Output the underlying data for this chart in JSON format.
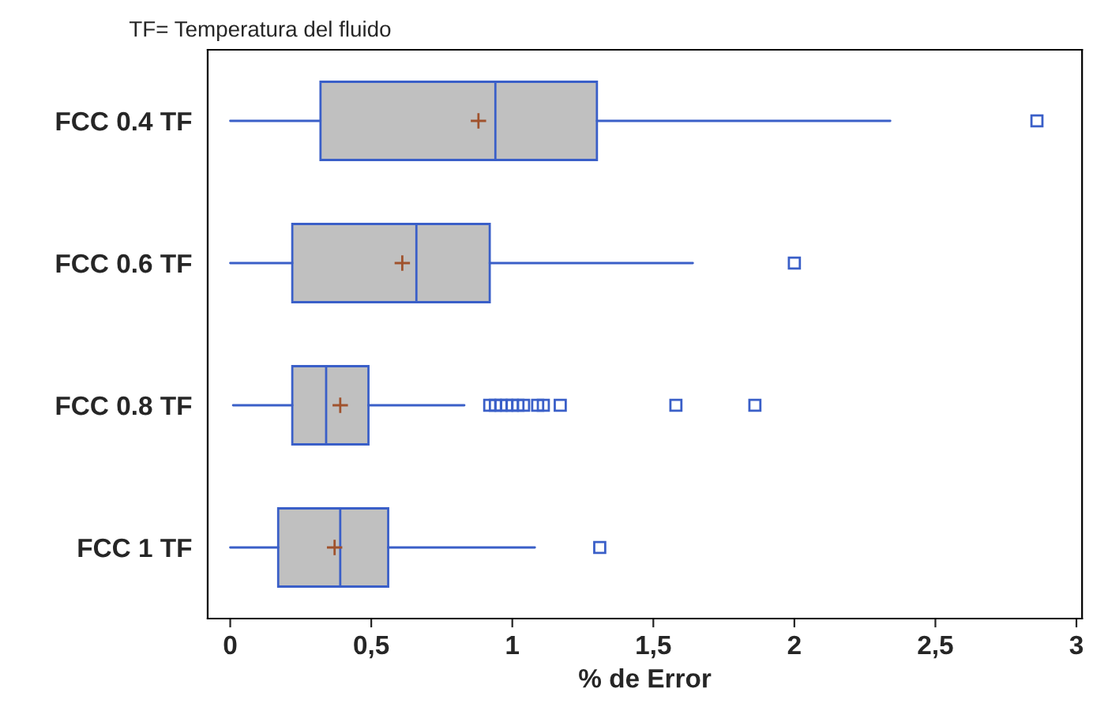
{
  "chart_data": {
    "type": "box",
    "title": "TF= Temperatura del fluido",
    "xlabel": "% de Error",
    "orientation": "horizontal",
    "categories": [
      "FCC 0.4 TF",
      "FCC 0.6 TF",
      "FCC 0.8 TF",
      "FCC 1 TF"
    ],
    "boxes": [
      {
        "low": 0,
        "q1": 0.32,
        "median": 0.94,
        "q3": 1.3,
        "high": 2.34,
        "mean": 0.88,
        "outliers": [
          2.86
        ]
      },
      {
        "low": 0,
        "q1": 0.22,
        "median": 0.66,
        "q3": 0.92,
        "high": 1.64,
        "mean": 0.61,
        "outliers": [
          2.0
        ]
      },
      {
        "low": 0.01,
        "q1": 0.22,
        "median": 0.34,
        "q3": 0.49,
        "high": 0.83,
        "mean": 0.39,
        "outliers": [
          0.92,
          0.94,
          0.96,
          0.98,
          1.0,
          1.02,
          1.04,
          1.09,
          1.11,
          1.17,
          1.58,
          1.86
        ]
      },
      {
        "low": 0,
        "q1": 0.17,
        "median": 0.39,
        "q3": 0.56,
        "high": 1.08,
        "mean": 0.37,
        "outliers": [
          1.31
        ]
      }
    ],
    "color": "#c0c0c0",
    "xlim": [
      -0.08,
      3.02
    ],
    "xticks": [
      0,
      {
        "value": 0.5,
        "label": "0,5"
      },
      1,
      {
        "value": 1.5,
        "label": "1,5"
      },
      2,
      {
        "value": 2.5,
        "label": "2,5"
      },
      3
    ],
    "grid": false,
    "legend": false
  }
}
